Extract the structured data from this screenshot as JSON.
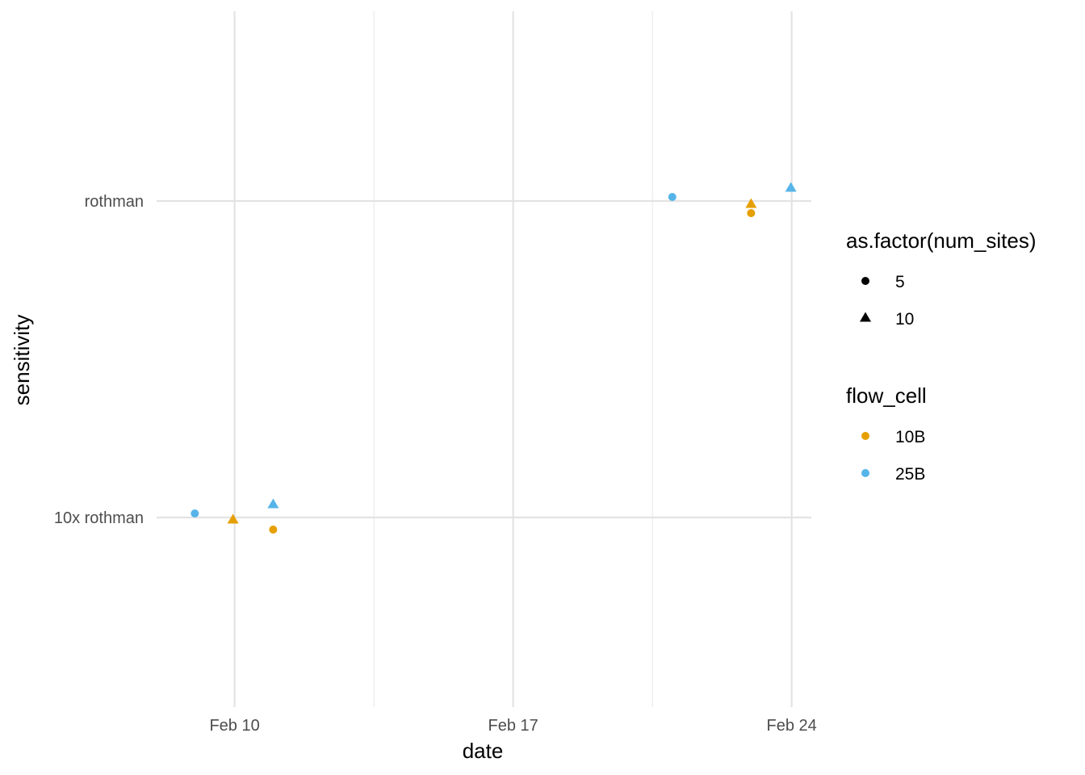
{
  "chart_data": {
    "type": "scatter",
    "title": "",
    "xlabel": "date",
    "ylabel": "sensitivity",
    "x_axis": {
      "type": "date",
      "range": [
        "2024-02-05",
        "2024-02-24"
      ],
      "major_ticks": [
        "2024-02-10",
        "2024-02-17",
        "2024-02-24"
      ],
      "tick_labels": [
        "Feb 10",
        "Feb 17",
        "Feb 24"
      ]
    },
    "y_axis": {
      "type": "categorical",
      "categories": [
        "10x rothman",
        "rothman"
      ]
    },
    "grid": true,
    "legend_position": "right",
    "legends": [
      {
        "title": "as.factor(num_sites)",
        "aesthetic": "shape",
        "entries": [
          {
            "label": "5",
            "shape": "circle"
          },
          {
            "label": "10",
            "shape": "triangle"
          }
        ]
      },
      {
        "title": "flow_cell",
        "aesthetic": "color",
        "entries": [
          {
            "label": "10B",
            "color": "#E69F00"
          },
          {
            "label": "25B",
            "color": "#56B4E9"
          }
        ]
      }
    ],
    "points": [
      {
        "date": "2024-02-09",
        "sensitivity": "10x rothman",
        "flow_cell": "25B",
        "num_sites": 5
      },
      {
        "date": "2024-02-10",
        "sensitivity": "10x rothman",
        "flow_cell": "10B",
        "num_sites": 10
      },
      {
        "date": "2024-02-11",
        "sensitivity": "10x rothman",
        "flow_cell": "10B",
        "num_sites": 5
      },
      {
        "date": "2024-02-11",
        "sensitivity": "10x rothman",
        "flow_cell": "25B",
        "num_sites": 10
      },
      {
        "date": "2024-02-21",
        "sensitivity": "rothman",
        "flow_cell": "25B",
        "num_sites": 5
      },
      {
        "date": "2024-02-23",
        "sensitivity": "rothman",
        "flow_cell": "10B",
        "num_sites": 10
      },
      {
        "date": "2024-02-23",
        "sensitivity": "rothman",
        "flow_cell": "10B",
        "num_sites": 5
      },
      {
        "date": "2024-02-24",
        "sensitivity": "rothman",
        "flow_cell": "25B",
        "num_sites": 10
      }
    ]
  }
}
